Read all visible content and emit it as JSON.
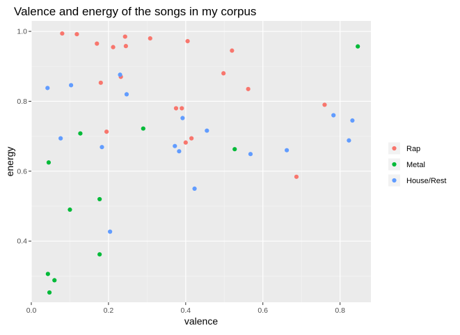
{
  "chart_data": {
    "type": "scatter",
    "title": "Valence and energy of the songs in my corpus",
    "xlabel": "valence",
    "ylabel": "energy",
    "xlim": [
      0.0,
      0.88
    ],
    "ylim": [
      0.225,
      1.03
    ],
    "x_ticks": [
      0.0,
      0.2,
      0.4,
      0.6,
      0.8
    ],
    "x_tick_labels": [
      "0.0",
      "0.2",
      "0.4",
      "0.6",
      "0.8"
    ],
    "y_ticks": [
      0.4,
      0.6,
      0.8,
      1.0
    ],
    "y_tick_labels": [
      "0.4",
      "0.6",
      "0.8",
      "1.0"
    ],
    "grid": true,
    "legend_position": "right",
    "background": "#ebebeb",
    "series": [
      {
        "name": "Rap",
        "color": "#f8766d",
        "points": [
          [
            0.08,
            0.994
          ],
          [
            0.118,
            0.992
          ],
          [
            0.17,
            0.965
          ],
          [
            0.212,
            0.955
          ],
          [
            0.243,
            0.985
          ],
          [
            0.245,
            0.958
          ],
          [
            0.308,
            0.98
          ],
          [
            0.405,
            0.972
          ],
          [
            0.52,
            0.945
          ],
          [
            0.498,
            0.88
          ],
          [
            0.562,
            0.835
          ],
          [
            0.18,
            0.853
          ],
          [
            0.232,
            0.87
          ],
          [
            0.375,
            0.78
          ],
          [
            0.39,
            0.78
          ],
          [
            0.195,
            0.713
          ],
          [
            0.4,
            0.682
          ],
          [
            0.415,
            0.694
          ],
          [
            0.76,
            0.79
          ],
          [
            0.687,
            0.584
          ]
        ]
      },
      {
        "name": "Metal",
        "color": "#00ba38",
        "points": [
          [
            0.127,
            0.708
          ],
          [
            0.29,
            0.722
          ],
          [
            0.045,
            0.625
          ],
          [
            0.527,
            0.663
          ],
          [
            0.1,
            0.49
          ],
          [
            0.177,
            0.52
          ],
          [
            0.177,
            0.362
          ],
          [
            0.043,
            0.306
          ],
          [
            0.06,
            0.288
          ],
          [
            0.047,
            0.253
          ],
          [
            0.846,
            0.957
          ]
        ]
      },
      {
        "name": "House/Rest",
        "color": "#619cff",
        "points": [
          [
            0.042,
            0.838
          ],
          [
            0.103,
            0.846
          ],
          [
            0.23,
            0.876
          ],
          [
            0.247,
            0.82
          ],
          [
            0.076,
            0.694
          ],
          [
            0.183,
            0.669
          ],
          [
            0.392,
            0.752
          ],
          [
            0.455,
            0.716
          ],
          [
            0.372,
            0.672
          ],
          [
            0.383,
            0.657
          ],
          [
            0.568,
            0.649
          ],
          [
            0.662,
            0.66
          ],
          [
            0.783,
            0.76
          ],
          [
            0.832,
            0.745
          ],
          [
            0.823,
            0.688
          ],
          [
            0.423,
            0.55
          ],
          [
            0.204,
            0.427
          ]
        ]
      }
    ]
  }
}
